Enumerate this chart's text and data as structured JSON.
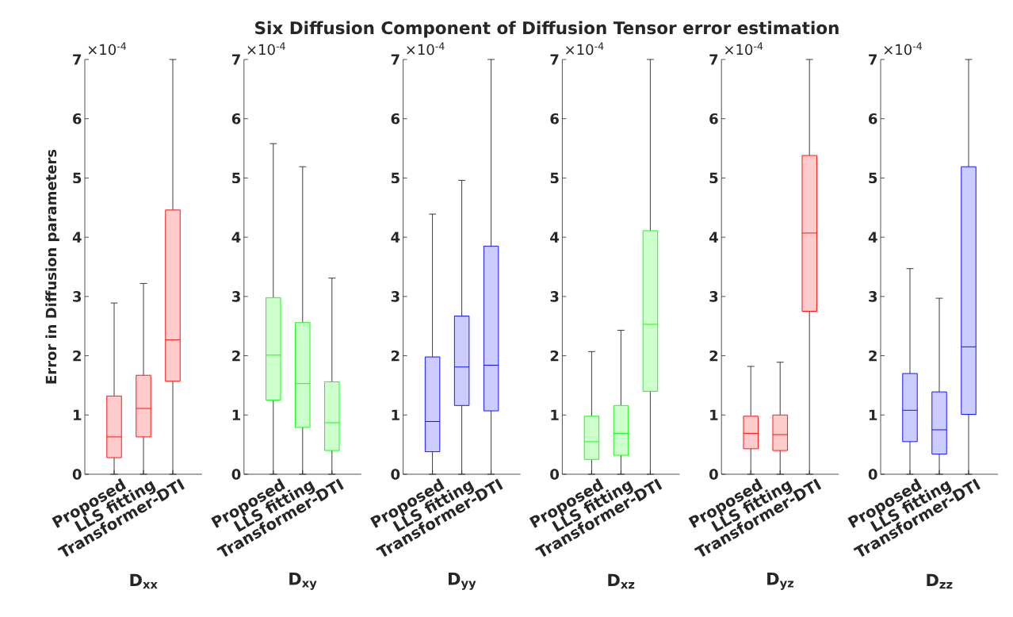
{
  "chart_data": [
    {
      "type": "box",
      "ylabel": "Error in Diffusion parameters",
      "xlabel": "D$_{xx}$",
      "categories": [
        "Proposed",
        "LLS fitting",
        "Transformer-DTI"
      ],
      "color": "#ff0000",
      "boxes": [
        {
          "low": 0,
          "q1": 0.28,
          "median": 0.63,
          "q3": 1.32,
          "high": 2.89
        },
        {
          "low": 0,
          "q1": 0.63,
          "median": 1.11,
          "q3": 1.67,
          "high": 3.22
        },
        {
          "low": 0,
          "q1": 1.57,
          "median": 2.27,
          "q3": 4.46,
          "high": 7
        }
      ],
      "ylim": [
        0,
        7
      ],
      "yticks": [
        0,
        1,
        2,
        3,
        4,
        5,
        6,
        7
      ],
      "annotations": [
        "×10$^{-4}$"
      ]
    },
    {
      "type": "box",
      "xlabel": "D$_{xy}$",
      "categories": [
        "Proposed",
        "LLS fitting",
        "Transformer-DTI"
      ],
      "color": "#00ff00",
      "boxes": [
        {
          "low": 0,
          "q1": 1.25,
          "median": 2.01,
          "q3": 2.98,
          "high": 5.58
        },
        {
          "low": 0,
          "q1": 0.79,
          "median": 1.53,
          "q3": 2.56,
          "high": 5.19
        },
        {
          "low": 0,
          "q1": 0.4,
          "median": 0.87,
          "q3": 1.56,
          "high": 3.31
        }
      ],
      "ylim": [
        0,
        7
      ],
      "yticks": [
        0,
        1,
        2,
        3,
        4,
        5,
        6,
        7
      ],
      "annotations": [
        "×10$^{-4}$"
      ]
    },
    {
      "type": "box",
      "xlabel": "D$_{yy}$",
      "categories": [
        "Proposed",
        "LLS fitting",
        "Transformer-DTI"
      ],
      "color": "#0000ff",
      "boxes": [
        {
          "low": 0,
          "q1": 0.38,
          "median": 0.89,
          "q3": 1.98,
          "high": 4.39
        },
        {
          "low": 0,
          "q1": 1.16,
          "median": 1.81,
          "q3": 2.67,
          "high": 4.96
        },
        {
          "low": 0,
          "q1": 1.07,
          "median": 1.84,
          "q3": 3.85,
          "high": 7
        }
      ],
      "ylim": [
        0,
        7
      ],
      "yticks": [
        0,
        1,
        2,
        3,
        4,
        5,
        6,
        7
      ],
      "annotations": [
        "×10$^{-4}$"
      ]
    },
    {
      "type": "box",
      "title": "Six Diffusion Component of Diffusion Tensor error estimation",
      "xlabel": "D$_{xz}$",
      "categories": [
        "Proposed",
        "LLS fitting",
        "Transformer-DTI"
      ],
      "color": "#00ff00",
      "boxes": [
        {
          "low": 0,
          "q1": 0.25,
          "median": 0.55,
          "q3": 0.98,
          "high": 2.07
        },
        {
          "low": 0,
          "q1": 0.32,
          "median": 0.69,
          "q3": 1.16,
          "high": 2.43
        },
        {
          "low": 0,
          "q1": 1.4,
          "median": 2.53,
          "q3": 4.11,
          "high": 7
        }
      ],
      "ylim": [
        0,
        7
      ],
      "yticks": [
        0,
        1,
        2,
        3,
        4,
        5,
        6,
        7
      ],
      "annotations": [
        "×10$^{-4}$"
      ]
    },
    {
      "type": "box",
      "xlabel": "D$_{yz}$",
      "categories": [
        "Proposed",
        "LLS fitting",
        "Transformer-DTI"
      ],
      "color": "#ff0000",
      "boxes": [
        {
          "low": 0,
          "q1": 0.43,
          "median": 0.69,
          "q3": 0.98,
          "high": 1.82
        },
        {
          "low": 0,
          "q1": 0.4,
          "median": 0.67,
          "q3": 1.0,
          "high": 1.89
        },
        {
          "low": 0,
          "q1": 2.75,
          "median": 4.07,
          "q3": 5.38,
          "high": 7
        }
      ],
      "ylim": [
        0,
        7
      ],
      "yticks": [
        0,
        1,
        2,
        3,
        4,
        5,
        6,
        7
      ],
      "annotations": [
        "×10$^{-4}$"
      ]
    },
    {
      "type": "box",
      "xlabel": "D$_{zz}$",
      "categories": [
        "Proposed",
        "LLS fitting",
        "Transformer-DTI"
      ],
      "color": "#0000ff",
      "boxes": [
        {
          "low": 0,
          "q1": 0.55,
          "median": 1.08,
          "q3": 1.7,
          "high": 3.47
        },
        {
          "low": 0,
          "q1": 0.34,
          "median": 0.75,
          "q3": 1.39,
          "high": 2.97
        },
        {
          "low": 0,
          "q1": 1.01,
          "median": 2.15,
          "q3": 5.19,
          "high": 7
        }
      ],
      "ylim": [
        0,
        7
      ],
      "yticks": [
        0,
        1,
        2,
        3,
        4,
        5,
        6,
        7
      ],
      "annotations": [
        "×10$^{-4}$"
      ]
    }
  ]
}
